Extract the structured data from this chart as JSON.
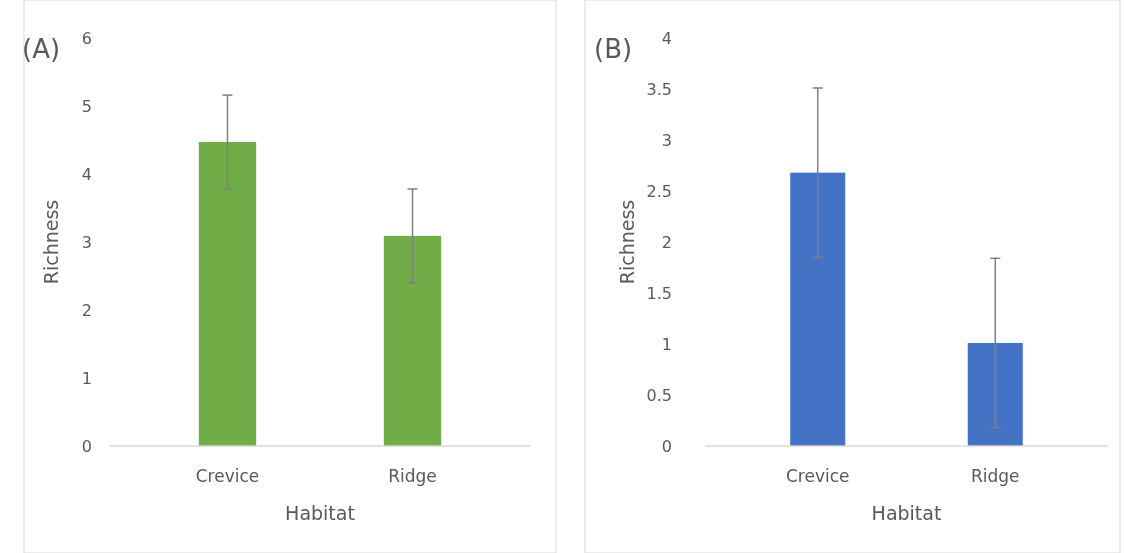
{
  "chart_data": [
    {
      "type": "bar",
      "xlabel": "Habitat",
      "ylabel": "Richness",
      "annotations": [
        "(A)"
      ],
      "categories": [
        "Crevice",
        "Ridge"
      ],
      "series": [
        {
          "color": "#70ad47",
          "values": [
            4.47,
            3.09
          ],
          "errors": [
            0.69,
            0.69
          ]
        }
      ],
      "ylim": [
        0,
        6
      ],
      "yticks": [
        0,
        1,
        2,
        3,
        4,
        5,
        6
      ],
      "grid": false
    },
    {
      "type": "bar",
      "xlabel": "Habitat",
      "ylabel": "Richness",
      "annotations": [
        "(B)"
      ],
      "categories": [
        "Crevice",
        "Ridge"
      ],
      "series": [
        {
          "color": "#4472c4",
          "values": [
            2.68,
            1.01
          ],
          "errors": [
            0.83,
            0.83
          ]
        }
      ],
      "ylim": [
        0,
        4
      ],
      "yticks": [
        0,
        0.5,
        1,
        1.5,
        2,
        2.5,
        3,
        3.5,
        4
      ],
      "grid": false
    }
  ]
}
